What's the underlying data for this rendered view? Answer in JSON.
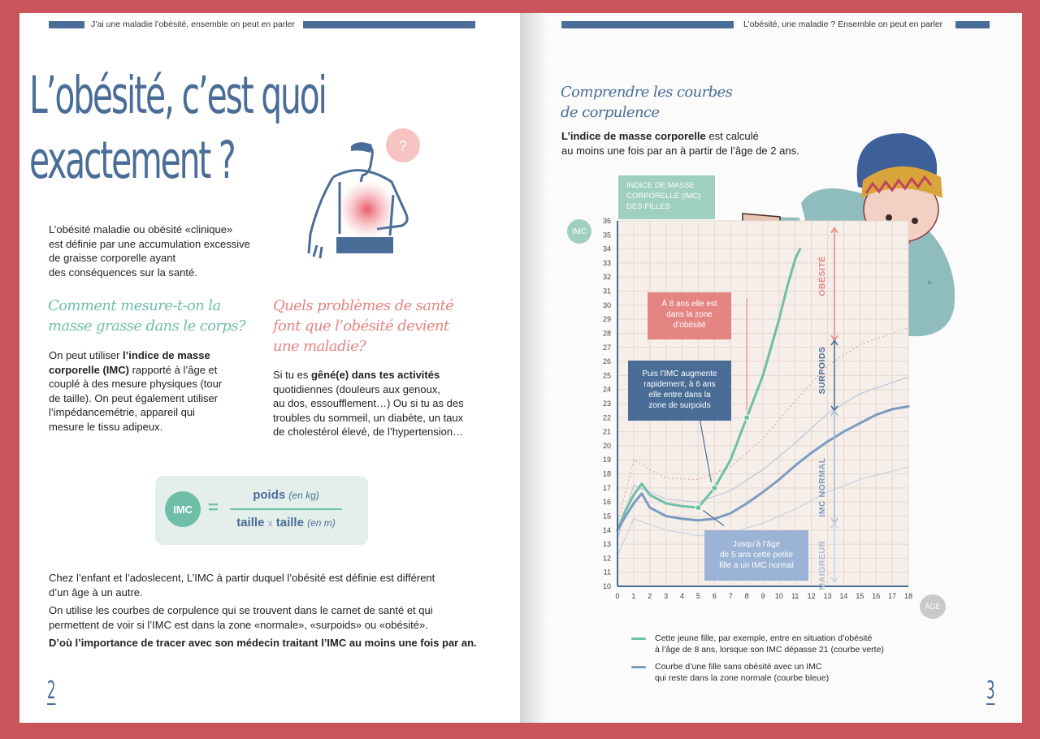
{
  "left": {
    "header": "J’ai une maladie l’obésité, ensemble on peut en parler",
    "title_line1": "L’obésité, c’est quoi",
    "title_line2": "exactement ?",
    "question_mark": "?",
    "intro": [
      "L’obésité maladie ou obésité «clinique»",
      "est définie par une accumulation excessive",
      "de graisse corporelle ayant",
      "des conséquences sur la santé."
    ],
    "measure": {
      "title_line1": "Comment mesure-t-on la",
      "title_line2": "masse grasse dans le corps?",
      "t1": "On peut utiliser ",
      "b1": "l’indice de masse",
      "b2": "corporelle (IMC)",
      "t2": " rapporté à l’âge et",
      "l3": "couplé à des mesure physiques (tour",
      "l4": "de taille). On peut également utiliser",
      "l5": "l’impédancemétrie, appareil qui",
      "l6": "mesure le tissu adipeux."
    },
    "problems": {
      "title_line1": "Quels problèmes de santé",
      "title_line2": "font que l’obésité devient",
      "title_line3": "une maladie?",
      "t1": "Si tu es ",
      "b1": "gêné(e) dans tes activités",
      "l2": "quotidiennes (douleurs aux genoux,",
      "l3": "au dos, essoufflement…) Ou si tu as des",
      "l4": "troubles du sommeil, un diabète, un taux",
      "l5": "de cholestérol élevé, de l’hypertension…"
    },
    "formula": {
      "badge": "IMC",
      "equals": "=",
      "num": "poids",
      "num_unit": "(en kg)",
      "den_a": "taille",
      "times": "x",
      "den_b": "taille",
      "den_unit": "(en m)"
    },
    "outro1_a": "Chez l’enfant et l’adoslecent, L’IMC à partir duquel l’obésité est définie est différent",
    "outro1_b": "d’un âge à un autre.",
    "outro2_a": "On utilise les courbes de corpulence qui se trouvent dans le carnet de santé et qui",
    "outro2_b": "permettent de voir si l’IMC est dans la zone «normale», «surpoids» ou «obésité».",
    "outro3": "D’où l’importance de tracer avec son médecin traitant l’IMC au moins une fois par an.",
    "page_number": "2"
  },
  "right": {
    "header": "L’obésité, une maladie ?  Ensemble on peut en parler",
    "title_line1": "Comprendre les courbes",
    "title_line2": "de corpulence",
    "intro_b": "L’indice de masse corporelle",
    "intro_t": " est calculé",
    "intro_l2": "au moins une fois par an à partir de l’âge de 2 ans.",
    "chart_tag": [
      "INDICE DE MASSE",
      "CORPORELLE (IMC)",
      "DES FILLES"
    ],
    "imc_badge": "IMC",
    "age_badge": "ÂGE",
    "zones": {
      "obesite": "OBÉSITÉ",
      "surpoids": "SURPOIDS",
      "normal": "IMC NORMAL",
      "maigreur": "MAIGREUR"
    },
    "callout_red": [
      "À 8 ans elle est",
      "dans la zone",
      "d’obésité"
    ],
    "callout_blue": [
      "Puis l’IMC augmente",
      "rapidement, à 6 ans",
      "elle entre dans la",
      "zone de surpoids"
    ],
    "callout_light": [
      "Jusqu’à l’âge",
      "de 5 ans cette petite",
      "fille a un IMC normal"
    ],
    "legend1_l1": "Cette jeune fille, par exemple, entre en situation d’obésité",
    "legend1_l2": "à l’âge de 8 ans, lorsque son IMC dépasse 21 (courbe verte)",
    "legend2_l1": "Courbe d’une fille sans obésité avec un IMC",
    "legend2_l2": "qui reste dans la zone normale (courbe bleue)",
    "page_number": "3",
    "colors": {
      "green": "#6fbfa8",
      "blue": "#7b9bc3",
      "navy": "#4a6d98",
      "pink": "#e58582"
    }
  },
  "chart_data": {
    "type": "line",
    "title": "INDICE DE MASSE CORPORELLE (IMC) DES FILLES",
    "xlabel": "ÂGE",
    "ylabel": "IMC",
    "xlim": [
      0,
      18
    ],
    "ylim": [
      10,
      36
    ],
    "x_ticks": [
      0,
      1,
      2,
      3,
      4,
      5,
      6,
      7,
      8,
      9,
      10,
      11,
      12,
      13,
      14,
      15,
      16,
      17,
      18
    ],
    "y_ticks": [
      10,
      11,
      12,
      13,
      14,
      15,
      16,
      17,
      18,
      19,
      20,
      21,
      22,
      23,
      24,
      25,
      26,
      27,
      28,
      29,
      30,
      31,
      32,
      33,
      34,
      35,
      36
    ],
    "series": [
      {
        "name": "courbe verte",
        "color": "#6fbfa8",
        "x": [
          0,
          0.5,
          1,
          1.5,
          2,
          3,
          4,
          5,
          5.5,
          6,
          7,
          8,
          9,
          10,
          10.5,
          11,
          11.3
        ],
        "y": [
          14,
          15.4,
          16.5,
          17.3,
          16.5,
          15.9,
          15.7,
          15.6,
          16.3,
          17,
          19,
          22,
          25,
          29,
          31.3,
          33.3,
          34
        ]
      },
      {
        "name": "courbe bleue",
        "color": "#7b9bc3",
        "x": [
          0,
          0.5,
          1,
          1.5,
          2,
          3,
          4,
          5,
          6,
          7,
          8,
          9,
          10,
          11,
          12,
          13,
          14,
          15,
          16,
          17,
          18
        ],
        "y": [
          14,
          15,
          15.9,
          16.6,
          15.6,
          15,
          14.8,
          14.7,
          14.8,
          15.2,
          15.9,
          16.7,
          17.6,
          18.6,
          19.5,
          20.3,
          21,
          21.6,
          22.2,
          22.6,
          22.8
        ]
      }
    ],
    "reference_curves": [
      {
        "x": [
          0,
          1,
          2,
          3,
          5,
          7,
          9,
          11,
          13,
          15,
          18
        ],
        "y": [
          14.4,
          19,
          18.3,
          17.7,
          17.6,
          18.5,
          20.5,
          23.2,
          25.7,
          27.2,
          28.4
        ]
      },
      {
        "x": [
          0,
          1,
          2,
          3,
          5,
          7,
          9,
          11,
          13,
          15,
          18
        ],
        "y": [
          13.4,
          17.2,
          16.7,
          16.2,
          16,
          16.8,
          18.3,
          20.2,
          22.3,
          23.7,
          24.9
        ]
      },
      {
        "x": [
          0,
          1,
          2,
          3,
          5,
          7,
          9,
          11,
          13,
          15,
          18
        ],
        "y": [
          12.2,
          14.8,
          14.4,
          14,
          13.6,
          13.8,
          14.5,
          15.5,
          16.7,
          17.6,
          18.5
        ]
      }
    ],
    "markers": [
      {
        "x": 5,
        "y": 15.6
      },
      {
        "x": 6,
        "y": 17
      },
      {
        "x": 8,
        "y": 22
      }
    ]
  }
}
